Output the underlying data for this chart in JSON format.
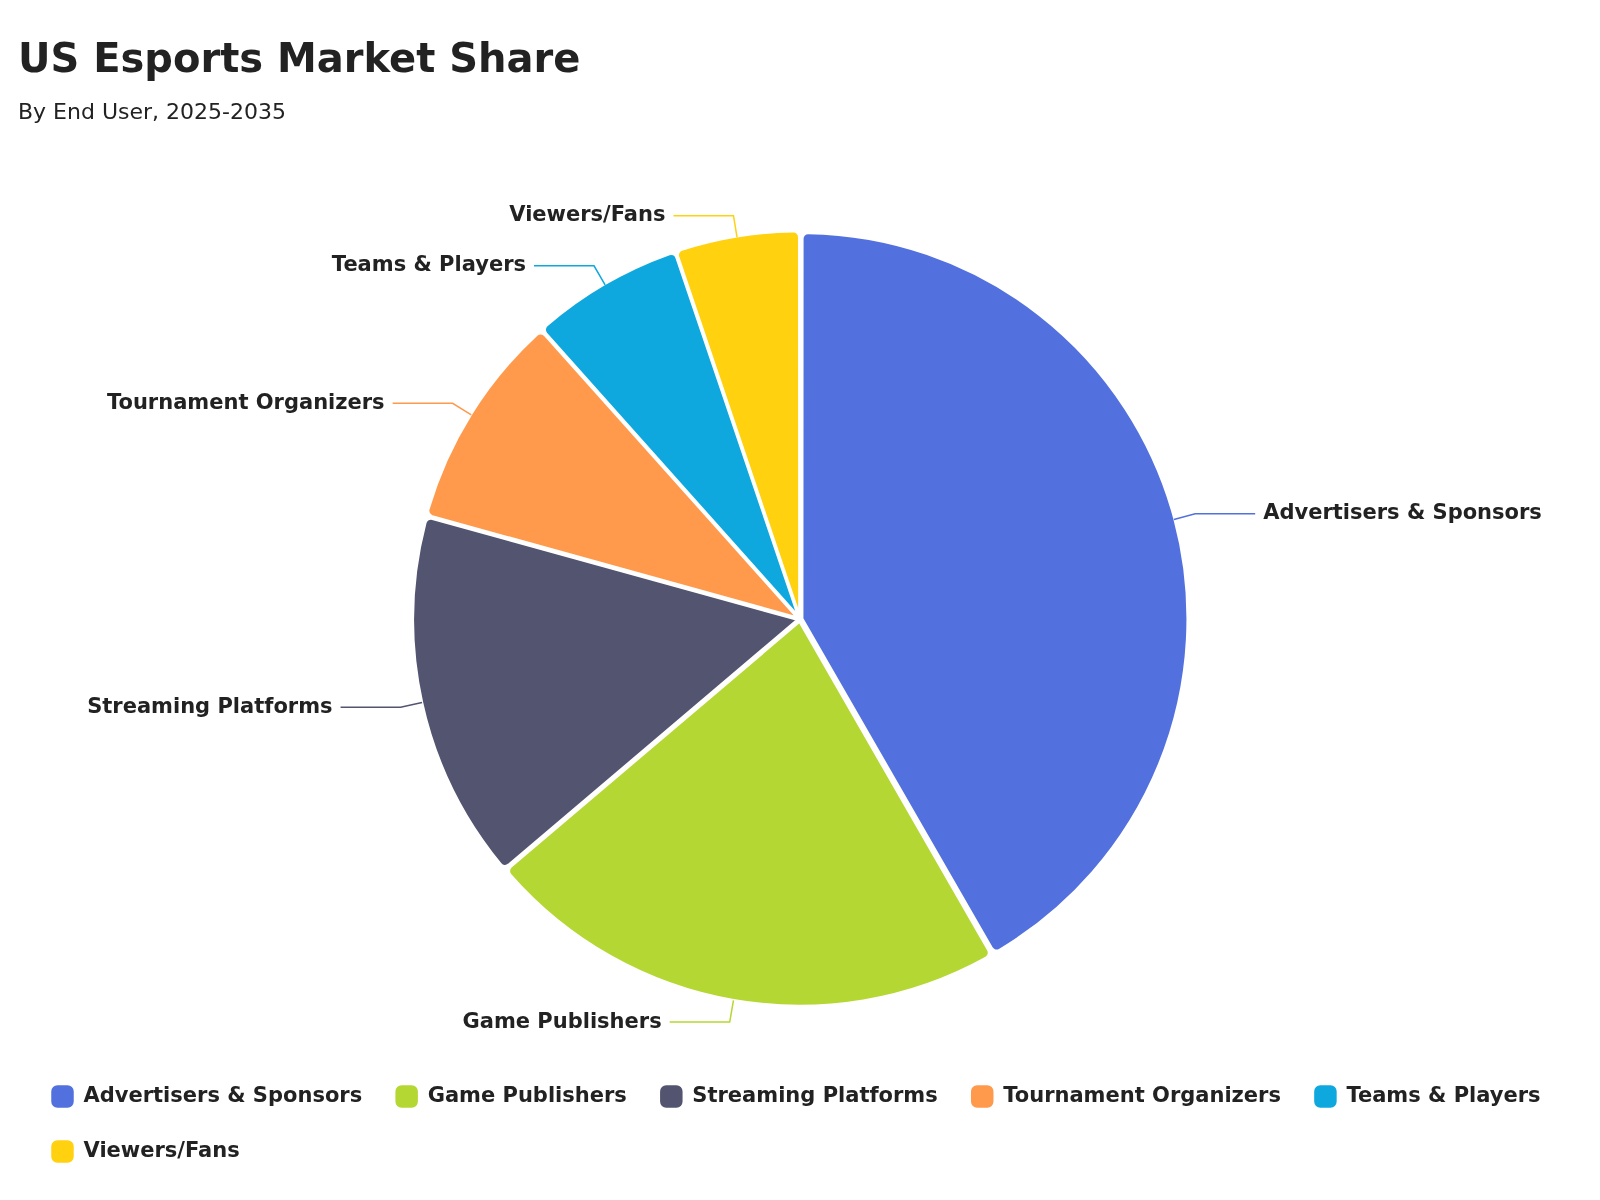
{
  "chart_data": {
    "type": "pie",
    "title": "US Esports Market Share",
    "subtitle": "By End User, 2025-2035",
    "categories": [
      "Advertisers & Sponsors",
      "Game Publishers",
      "Streaming Platforms",
      "Tournament Organizers",
      "Teams & Players",
      "Viewers/Fans"
    ],
    "values": [
      41.7,
      22.1,
      15.5,
      9.1,
      6.4,
      5.2
    ],
    "colors": [
      "#5271de",
      "#b5d733",
      "#525470",
      "#ff9a4d",
      "#0ea8de",
      "#ffd10f"
    ],
    "legend": "bottom"
  }
}
